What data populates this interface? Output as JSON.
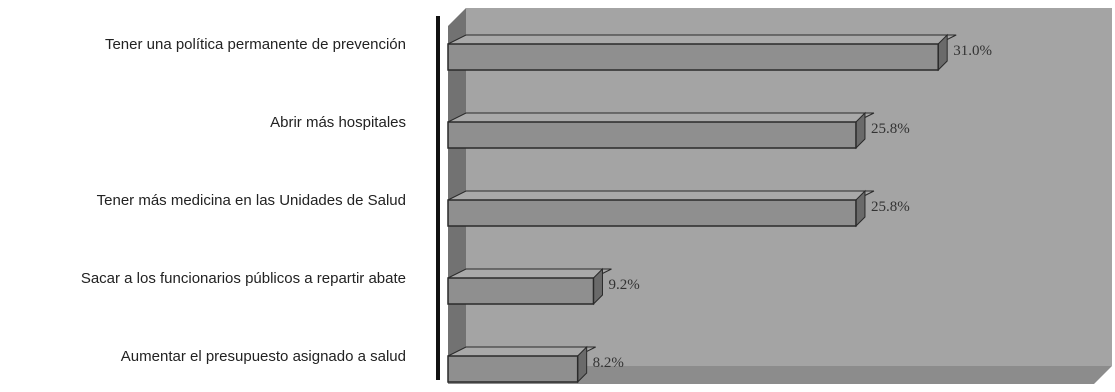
{
  "chart_data": {
    "type": "bar",
    "orientation": "horizontal",
    "three_d": true,
    "categories": [
      "Tener una política permanente de prevención",
      "Abrir más hospitales",
      "Tener más medicina en las Unidades de Salud",
      "Sacar a los funcionarios públicos a repartir abate",
      "Aumentar el presupuesto asignado a salud"
    ],
    "values": [
      31.0,
      25.8,
      25.8,
      9.2,
      8.2
    ],
    "value_labels": [
      "31.0%",
      "25.8%",
      "25.8%",
      "9.2%",
      "8.2%"
    ],
    "xlim": [
      0,
      32
    ],
    "grid": false,
    "legend": "none",
    "title": "",
    "xlabel": "",
    "ylabel": "",
    "colors": {
      "bar_front": "#8f8f8f",
      "bar_top": "#a9a9a9",
      "bar_side": "#6a6a6a",
      "bar_edge": "#2a2a2a",
      "plot_back": "#a4a4a4",
      "plot_floor": "#8c8c8c",
      "plot_left_wall": "#727272",
      "axis": "#111111"
    }
  }
}
